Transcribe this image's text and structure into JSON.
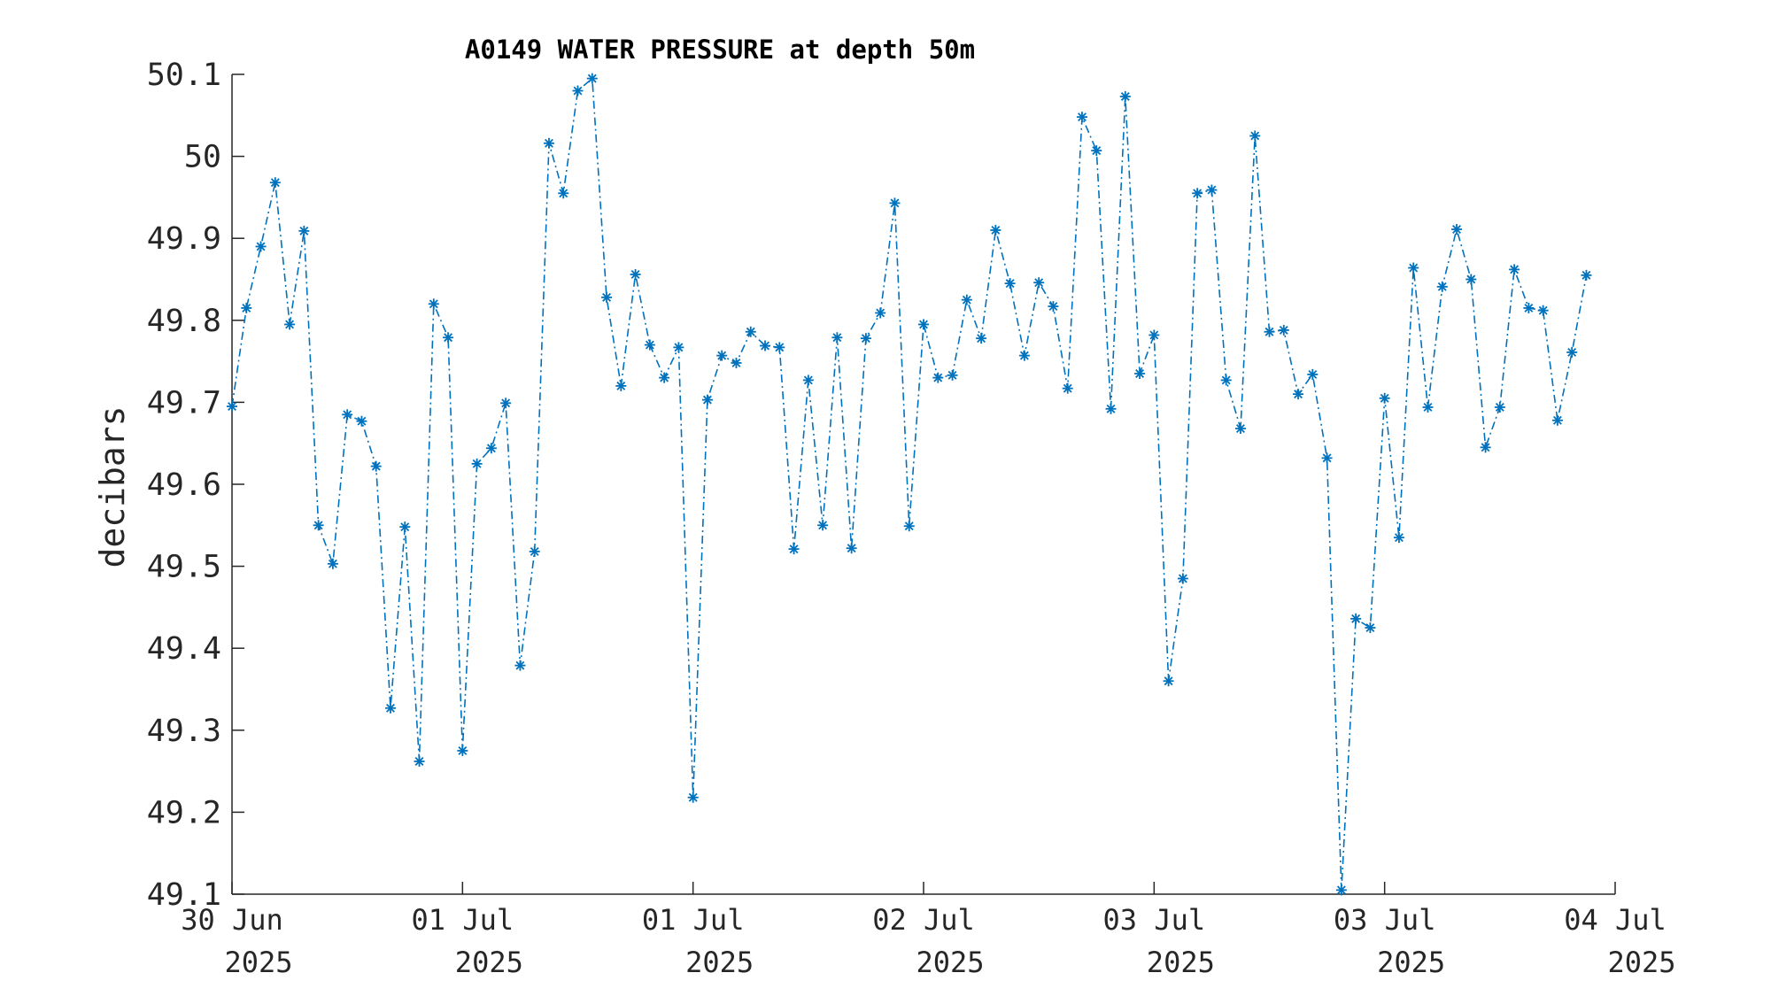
{
  "chart_data": {
    "type": "line",
    "title": "A0149 WATER PRESSURE at depth 50m",
    "xlabel": "",
    "ylabel": "decibars",
    "ylim": [
      49.1,
      50.1
    ],
    "yticks": [
      49.1,
      49.2,
      49.3,
      49.4,
      49.5,
      49.6,
      49.7,
      49.8,
      49.9,
      50,
      50.1
    ],
    "ytick_labels": [
      "49.1",
      "49.2",
      "49.3",
      "49.4",
      "49.5",
      "49.6",
      "49.7",
      "49.8",
      "49.9",
      "50",
      "50.1"
    ],
    "xlim": [
      "2025-06-30 00:00",
      "2025-07-04 00:00"
    ],
    "xticks": [
      {
        "line1": "30 Jun",
        "line2": "2025",
        "t": "2025-06-30 00:00"
      },
      {
        "line1": "01 Jul",
        "line2": "2025",
        "t": "2025-06-30 16:00"
      },
      {
        "line1": "01 Jul",
        "line2": "2025",
        "t": "2025-07-01 08:00"
      },
      {
        "line1": "02 Jul",
        "line2": "2025",
        "t": "2025-07-02 00:00"
      },
      {
        "line1": "03 Jul",
        "line2": "2025",
        "t": "2025-07-02 16:00"
      },
      {
        "line1": "03 Jul",
        "line2": "2025",
        "t": "2025-07-03 08:00"
      },
      {
        "line1": "04 Jul",
        "line2": "2025",
        "t": "2025-07-04 00:00"
      }
    ],
    "grid": false,
    "legend": "none",
    "color": "#0072BD",
    "marker": "asterisk",
    "line_style": "dash-dot",
    "series": [
      {
        "x_start": "2025-06-30 00:00",
        "x_step_minutes": 60,
        "values": [
          49.695,
          49.815,
          49.89,
          49.968,
          49.795,
          49.909,
          49.55,
          49.503,
          49.685,
          49.677,
          49.622,
          49.327,
          49.548,
          49.262,
          49.82,
          49.779,
          49.275,
          49.625,
          49.644,
          49.699,
          49.379,
          49.518,
          50.016,
          49.955,
          50.08,
          50.095,
          49.828,
          49.72,
          49.856,
          49.77,
          49.73,
          49.767,
          49.218,
          49.703,
          49.757,
          49.748,
          49.786,
          49.769,
          49.767,
          49.521,
          49.727,
          49.55,
          49.779,
          49.522,
          49.778,
          49.809,
          49.943,
          49.549,
          49.795,
          49.73,
          49.733,
          49.825,
          49.778,
          49.91,
          49.845,
          49.757,
          49.846,
          49.817,
          49.717,
          50.048,
          50.007,
          49.692,
          50.073,
          49.735,
          49.782,
          49.36,
          49.485,
          49.955,
          49.959,
          49.727,
          49.668,
          50.025,
          49.786,
          49.788,
          49.71,
          49.734,
          49.632,
          49.105,
          49.436,
          49.425,
          49.705,
          49.535,
          49.864,
          49.694,
          49.841,
          49.911,
          49.85,
          49.645,
          49.694,
          49.862,
          49.815,
          49.812,
          49.678,
          49.761,
          49.855
        ]
      }
    ]
  }
}
